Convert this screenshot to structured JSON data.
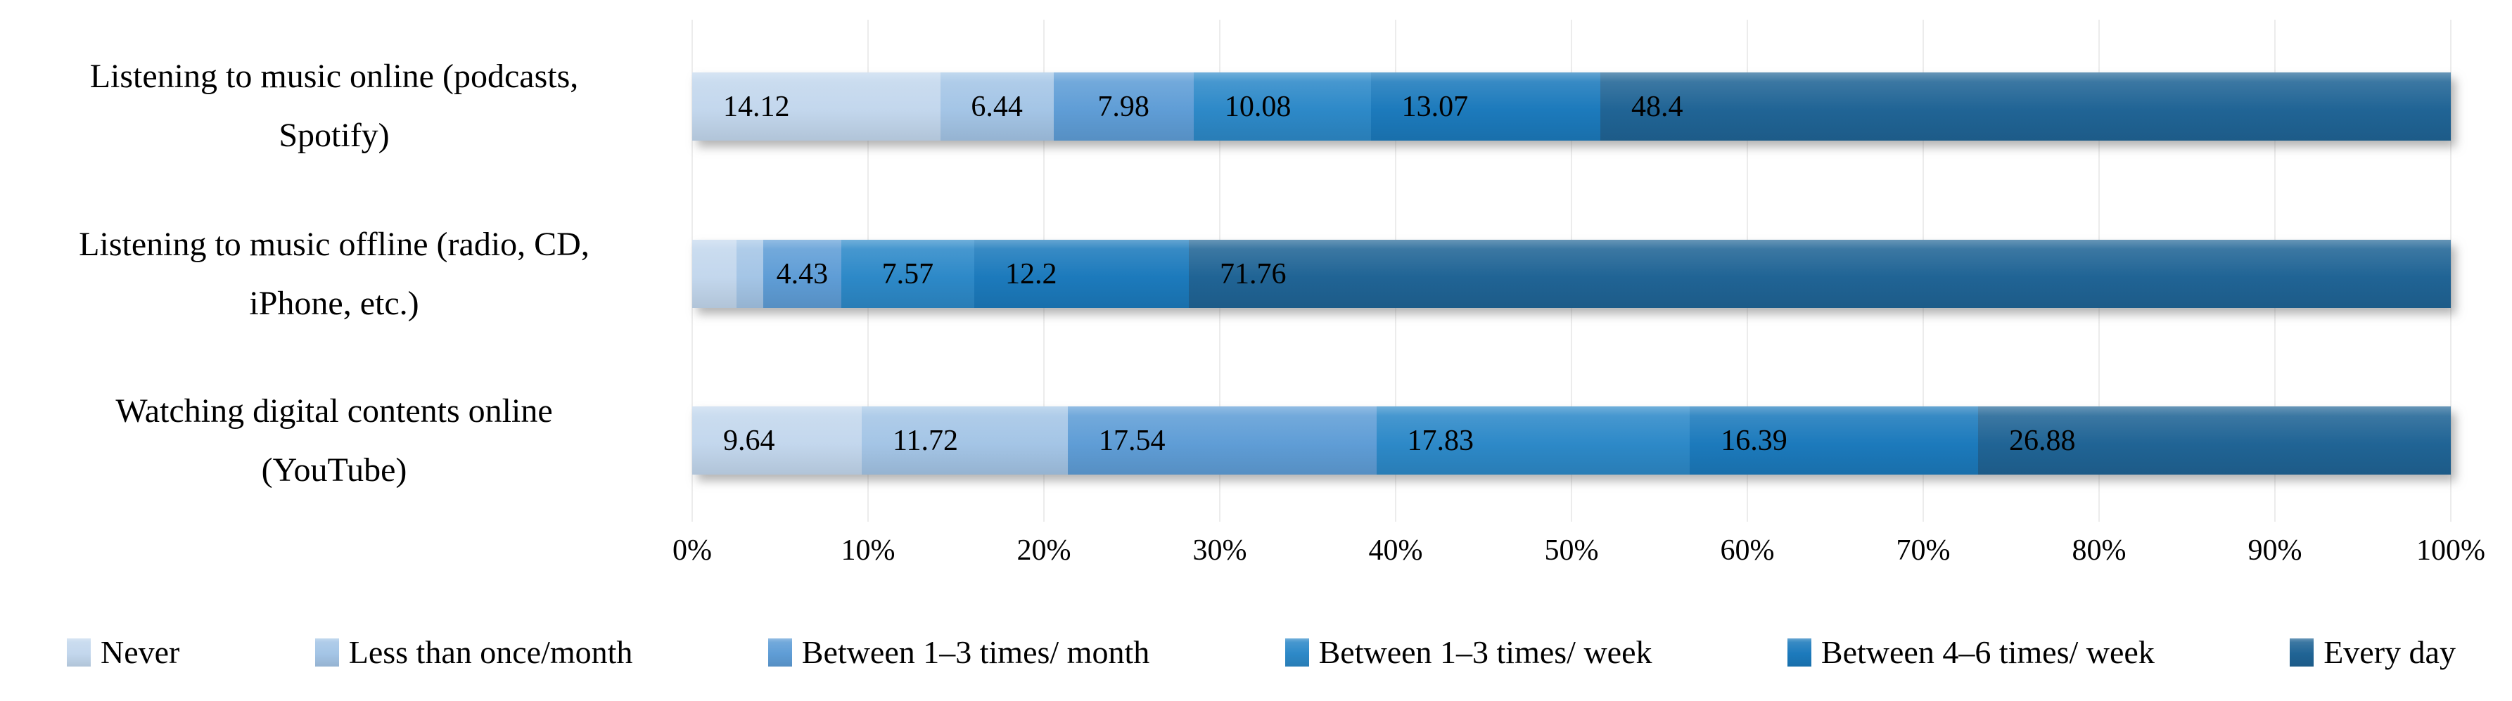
{
  "chart_data": {
    "type": "bar",
    "variant": "stacked-horizontal",
    "title": "",
    "xlabel": "",
    "ylabel": "",
    "xlim": [
      0,
      100
    ],
    "x_ticks": [
      "0%",
      "10%",
      "20%",
      "30%",
      "40%",
      "50%",
      "60%",
      "70%",
      "80%",
      "90%",
      "100%"
    ],
    "grid": "vertical-light",
    "legend_position": "bottom",
    "categories": [
      "Listening to music online (podcasts, Spotify)",
      "Listening to music offline (radio, CD, iPhone, etc.)",
      "Watching digital contents online (YouTube)"
    ],
    "categories_display_lines": [
      [
        "Listening to music online (podcasts,",
        "Spotify)"
      ],
      [
        "Listening to music offline (radio, CD,",
        "iPhone, etc.)"
      ],
      [
        "Watching digital contents online",
        "(YouTube)"
      ]
    ],
    "series": [
      {
        "name": "Never",
        "color": "#c3d7ed",
        "values": [
          14.12,
          2.52,
          9.64
        ],
        "labels": [
          "14.12",
          "",
          "9.64"
        ]
      },
      {
        "name": "Less than once/month",
        "color": "#a4c5e6",
        "values": [
          6.44,
          1.52,
          11.72
        ],
        "labels": [
          "6.44",
          "",
          "11.72"
        ]
      },
      {
        "name": "Between 1–3 times/ month",
        "color": "#5f9dd6",
        "values": [
          7.98,
          4.43,
          17.54
        ],
        "labels": [
          "7.98",
          "4.43",
          "17.54"
        ]
      },
      {
        "name": "Between 1–3 times/ week",
        "color": "#2d89c8",
        "values": [
          10.08,
          7.57,
          17.83
        ],
        "labels": [
          "10.08",
          "7.57",
          "17.83"
        ]
      },
      {
        "name": "Between 4–6 times/ week",
        "color": "#1c7abc",
        "values": [
          13.07,
          12.2,
          16.39
        ],
        "labels": [
          "13.07",
          "12.2",
          "16.39"
        ]
      },
      {
        "name": "Every day",
        "color": "#206495",
        "values": [
          48.4,
          71.76,
          26.88
        ],
        "labels": [
          "48.4",
          "71.76",
          "26.88"
        ]
      }
    ],
    "row_value_sums_note": "each bar stacks to 100%"
  }
}
